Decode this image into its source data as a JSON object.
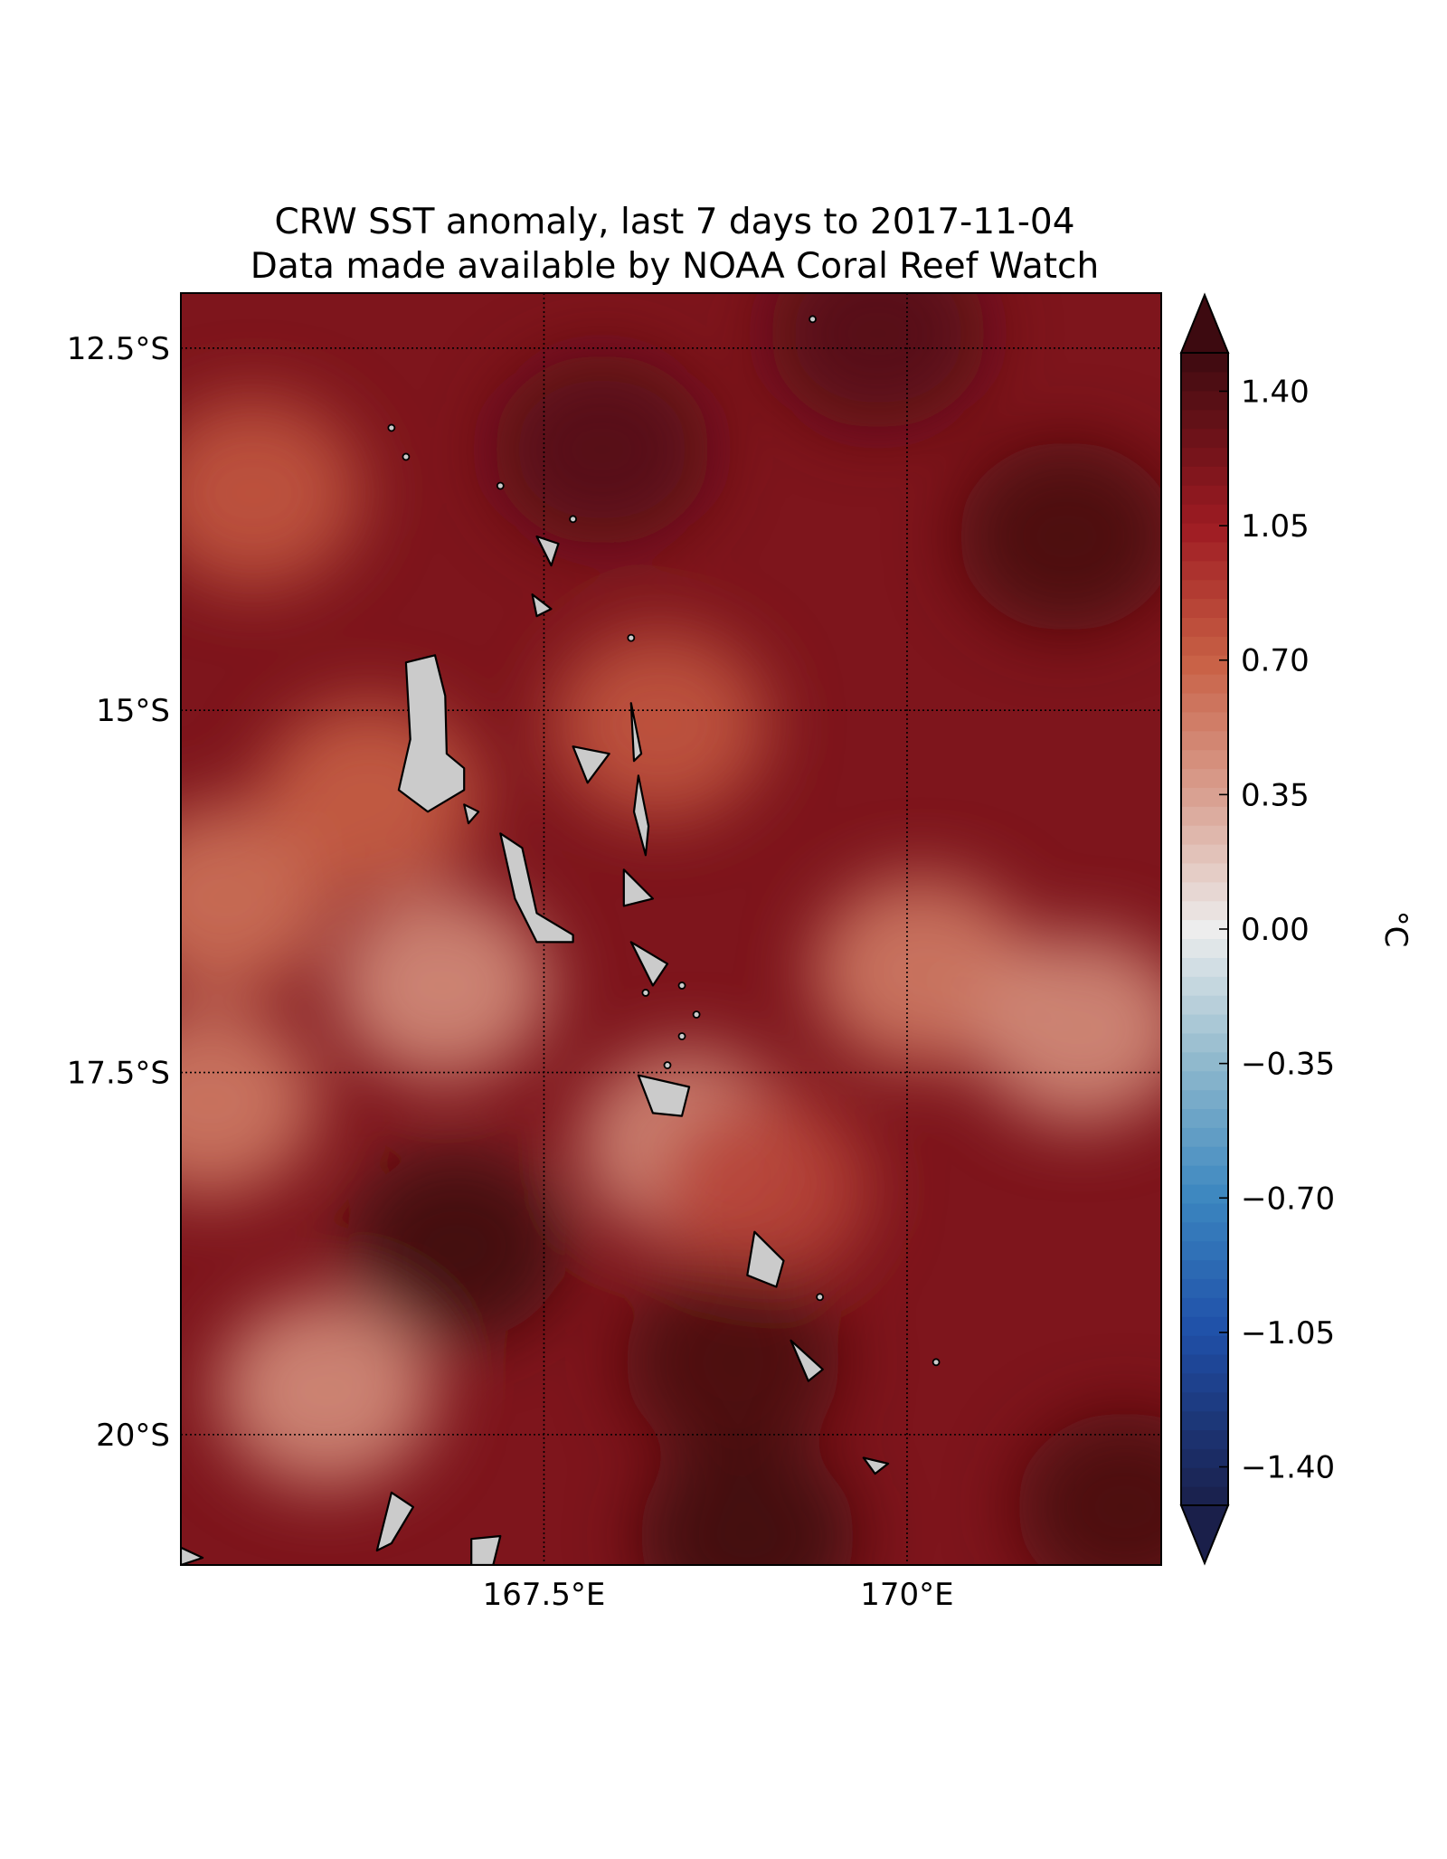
{
  "figure": {
    "title_line1": "CRW SST anomaly, last 7 days to 2017-11-04",
    "title_line2": "Data made available by NOAA Coral Reef Watch"
  },
  "map": {
    "extent": {
      "lon_min": 165.0,
      "lon_max": 171.75,
      "lat_min": -20.9,
      "lat_max": -12.12
    },
    "lat_ticks": [
      {
        "value": -12.5,
        "label": "12.5°S"
      },
      {
        "value": -15.0,
        "label": "15°S"
      },
      {
        "value": -17.5,
        "label": "17.5°S"
      },
      {
        "value": -20.0,
        "label": "20°S"
      }
    ],
    "lon_ticks": [
      {
        "value": 167.5,
        "label": "167.5°E"
      },
      {
        "value": 170.0,
        "label": "170°E"
      }
    ],
    "gridlines": "dotted",
    "land_color": "#cbcbcb",
    "coastline_color": "#000000",
    "background_anomaly_c": 1.2,
    "anomaly_field": [
      {
        "lon": 165.5,
        "lat": -13.5,
        "value": 0.75
      },
      {
        "lon": 170.1,
        "lat": -16.8,
        "value": 0.55
      },
      {
        "lon": 171.2,
        "lat": -17.2,
        "value": 0.45
      },
      {
        "lon": 166.8,
        "lat": -16.9,
        "value": 0.45
      },
      {
        "lon": 166.0,
        "lat": -19.7,
        "value": 0.45
      },
      {
        "lon": 168.5,
        "lat": -18.0,
        "value": 0.45
      },
      {
        "lon": 165.3,
        "lat": -16.3,
        "value": 0.6
      },
      {
        "lon": 165.2,
        "lat": -17.7,
        "value": 0.55
      },
      {
        "lon": 166.3,
        "lat": -15.6,
        "value": 0.7
      },
      {
        "lon": 168.3,
        "lat": -15.1,
        "value": 0.75
      },
      {
        "lon": 169.0,
        "lat": -18.3,
        "value": 0.85
      },
      {
        "lon": 166.9,
        "lat": -18.7,
        "value": 1.5
      },
      {
        "lon": 168.8,
        "lat": -19.5,
        "value": 1.45
      },
      {
        "lon": 168.9,
        "lat": -20.7,
        "value": 1.5
      },
      {
        "lon": 171.5,
        "lat": -20.5,
        "value": 1.45
      },
      {
        "lon": 167.9,
        "lat": -13.2,
        "value": 1.4
      },
      {
        "lon": 171.1,
        "lat": -13.8,
        "value": 1.45
      },
      {
        "lon": 169.8,
        "lat": -12.4,
        "value": 1.4
      }
    ],
    "islands": [
      {
        "name": "Espiritu Santo",
        "points": [
          [
            166.55,
            -14.67
          ],
          [
            166.75,
            -14.62
          ],
          [
            166.82,
            -14.9
          ],
          [
            166.83,
            -15.3
          ],
          [
            166.95,
            -15.4
          ],
          [
            166.95,
            -15.55
          ],
          [
            166.7,
            -15.7
          ],
          [
            166.5,
            -15.55
          ],
          [
            166.58,
            -15.2
          ],
          [
            166.55,
            -14.67
          ]
        ]
      },
      {
        "name": "Malakula",
        "points": [
          [
            167.2,
            -15.85
          ],
          [
            167.35,
            -15.95
          ],
          [
            167.45,
            -16.4
          ],
          [
            167.7,
            -16.55
          ],
          [
            167.7,
            -16.6
          ],
          [
            167.45,
            -16.6
          ],
          [
            167.3,
            -16.3
          ],
          [
            167.2,
            -15.85
          ]
        ]
      },
      {
        "name": "Efate",
        "points": [
          [
            168.15,
            -17.52
          ],
          [
            168.5,
            -17.6
          ],
          [
            168.45,
            -17.8
          ],
          [
            168.25,
            -17.78
          ],
          [
            168.15,
            -17.52
          ]
        ]
      },
      {
        "name": "Erromango",
        "points": [
          [
            168.95,
            -18.6
          ],
          [
            169.15,
            -18.8
          ],
          [
            169.1,
            -18.98
          ],
          [
            168.9,
            -18.9
          ],
          [
            168.95,
            -18.6
          ]
        ]
      },
      {
        "name": "Tanna",
        "points": [
          [
            169.2,
            -19.35
          ],
          [
            169.42,
            -19.55
          ],
          [
            169.32,
            -19.63
          ],
          [
            169.2,
            -19.35
          ]
        ]
      },
      {
        "name": "Aneityum",
        "points": [
          [
            169.7,
            -20.16
          ],
          [
            169.87,
            -20.2
          ],
          [
            169.78,
            -20.27
          ],
          [
            169.7,
            -20.16
          ]
        ]
      },
      {
        "name": "Maewo",
        "points": [
          [
            168.1,
            -14.95
          ],
          [
            168.17,
            -15.3
          ],
          [
            168.12,
            -15.35
          ],
          [
            168.1,
            -14.95
          ]
        ]
      },
      {
        "name": "Pentecost",
        "points": [
          [
            168.15,
            -15.45
          ],
          [
            168.22,
            -15.8
          ],
          [
            168.2,
            -16.0
          ],
          [
            168.12,
            -15.7
          ],
          [
            168.15,
            -15.45
          ]
        ]
      },
      {
        "name": "Ambae",
        "points": [
          [
            167.7,
            -15.25
          ],
          [
            167.95,
            -15.3
          ],
          [
            167.8,
            -15.5
          ],
          [
            167.7,
            -15.25
          ]
        ]
      },
      {
        "name": "Ambrym",
        "points": [
          [
            168.05,
            -16.1
          ],
          [
            168.25,
            -16.3
          ],
          [
            168.05,
            -16.35
          ],
          [
            168.05,
            -16.1
          ]
        ]
      },
      {
        "name": "Epi",
        "points": [
          [
            168.1,
            -16.6
          ],
          [
            168.35,
            -16.75
          ],
          [
            168.25,
            -16.9
          ],
          [
            168.1,
            -16.6
          ]
        ]
      },
      {
        "name": "Vanua Lava",
        "points": [
          [
            167.45,
            -13.8
          ],
          [
            167.6,
            -13.85
          ],
          [
            167.55,
            -14.0
          ],
          [
            167.45,
            -13.8
          ]
        ]
      },
      {
        "name": "Gaua",
        "points": [
          [
            167.42,
            -14.2
          ],
          [
            167.55,
            -14.3
          ],
          [
            167.45,
            -14.35
          ],
          [
            167.42,
            -14.2
          ]
        ]
      },
      {
        "name": "Malo",
        "points": [
          [
            166.95,
            -15.65
          ],
          [
            167.05,
            -15.7
          ],
          [
            166.98,
            -15.78
          ],
          [
            166.95,
            -15.65
          ]
        ]
      },
      {
        "name": "Ouvea",
        "points": [
          [
            166.45,
            -20.4
          ],
          [
            166.6,
            -20.5
          ],
          [
            166.45,
            -20.75
          ],
          [
            166.35,
            -20.8
          ],
          [
            166.45,
            -20.4
          ]
        ]
      },
      {
        "name": "Lifou NW",
        "points": [
          [
            167.0,
            -20.72
          ],
          [
            167.2,
            -20.7
          ],
          [
            167.15,
            -20.9
          ],
          [
            167.0,
            -20.9
          ],
          [
            167.0,
            -20.72
          ]
        ]
      },
      {
        "name": "Grande Terre tip",
        "points": [
          [
            165.0,
            -20.78
          ],
          [
            165.15,
            -20.85
          ],
          [
            165.0,
            -20.9
          ],
          [
            165.0,
            -20.78
          ]
        ]
      }
    ],
    "islets": [
      {
        "lon": 166.45,
        "lat": -13.05
      },
      {
        "lon": 166.55,
        "lat": -13.25
      },
      {
        "lon": 167.2,
        "lat": -13.45
      },
      {
        "lon": 167.7,
        "lat": -13.68
      },
      {
        "lon": 168.1,
        "lat": -14.5
      },
      {
        "lon": 168.55,
        "lat": -17.1
      },
      {
        "lon": 168.45,
        "lat": -17.25
      },
      {
        "lon": 169.35,
        "lat": -12.3
      },
      {
        "lon": 168.2,
        "lat": -16.95
      },
      {
        "lon": 168.45,
        "lat": -16.9
      },
      {
        "lon": 169.4,
        "lat": -19.05
      },
      {
        "lon": 170.2,
        "lat": -19.5
      },
      {
        "lon": 168.35,
        "lat": -17.45
      }
    ]
  },
  "colorbar": {
    "vmin": -1.5,
    "vmax": 1.5,
    "levels": 61,
    "extend": "both",
    "unit_label": "°C",
    "ticks": [
      {
        "value": 1.4,
        "label": "1.40"
      },
      {
        "value": 1.05,
        "label": "1.05"
      },
      {
        "value": 0.7,
        "label": "0.70"
      },
      {
        "value": 0.35,
        "label": "0.35"
      },
      {
        "value": 0.0,
        "label": "0.00"
      },
      {
        "value": -0.35,
        "label": "−0.35"
      },
      {
        "value": -0.7,
        "label": "−0.70"
      },
      {
        "value": -1.05,
        "label": "−1.05"
      },
      {
        "value": -1.4,
        "label": "−1.40"
      }
    ],
    "color_stops": [
      {
        "value": -1.5,
        "color": "#1a1f4a"
      },
      {
        "value": -1.05,
        "color": "#1f4fa8"
      },
      {
        "value": -0.7,
        "color": "#3b86c0"
      },
      {
        "value": -0.35,
        "color": "#8eb8cc"
      },
      {
        "value": 0.0,
        "color": "#ededed"
      },
      {
        "value": 0.35,
        "color": "#d9a090"
      },
      {
        "value": 0.7,
        "color": "#c86045"
      },
      {
        "value": 1.05,
        "color": "#9e1b22"
      },
      {
        "value": 1.5,
        "color": "#3d0a10"
      }
    ]
  }
}
